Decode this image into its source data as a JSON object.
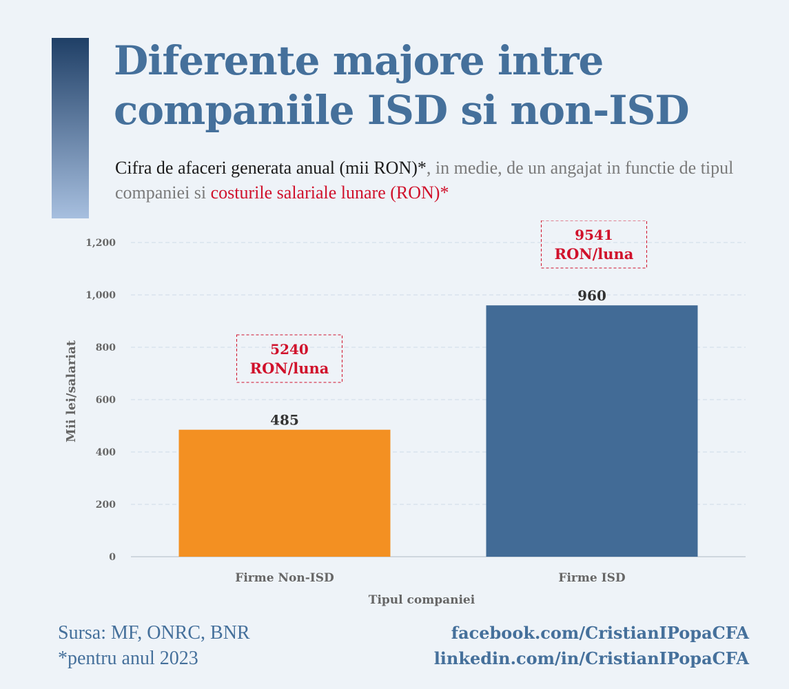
{
  "header": {
    "title_line1": "Diferente majore intre",
    "title_line2": "companiile ISD si non-ISD",
    "subtitle_dark": "Cifra de afaceri generata anual (mii RON)*",
    "subtitle_mid": ", in medie, de un angajat in functie de tipul companiei si ",
    "subtitle_red": "costurile salariale lunare (RON)*"
  },
  "chart_data": {
    "type": "bar",
    "categories": [
      "Firme Non-ISD",
      "Firme ISD"
    ],
    "values": [
      485,
      960
    ],
    "value_labels": [
      "485",
      "960"
    ],
    "bar_colors": [
      "#f39022",
      "#426b96"
    ],
    "annotations": [
      {
        "line1": "5240",
        "line2": "RON/luna"
      },
      {
        "line1": "9541",
        "line2": "RON/luna"
      }
    ],
    "xlabel": "Tipul companiei",
    "ylabel": "Mii lei/salariat",
    "ylim": [
      0,
      1200
    ],
    "yticks": [
      0,
      200,
      400,
      600,
      800,
      1000,
      1200
    ],
    "ytick_labels": [
      "0",
      "200",
      "400",
      "600",
      "800",
      "1,000",
      "1,200"
    ],
    "grid": true
  },
  "footer": {
    "source": "Sursa: MF, ONRC, BNR",
    "note": "*pentru anul 2023",
    "facebook": "facebook.com/CristianIPopaCFA",
    "linkedin": "linkedin.com/in/CristianIPopaCFA"
  },
  "colors": {
    "title": "#45709b",
    "accent_red": "#d0112b",
    "background": "#eef3f8"
  }
}
